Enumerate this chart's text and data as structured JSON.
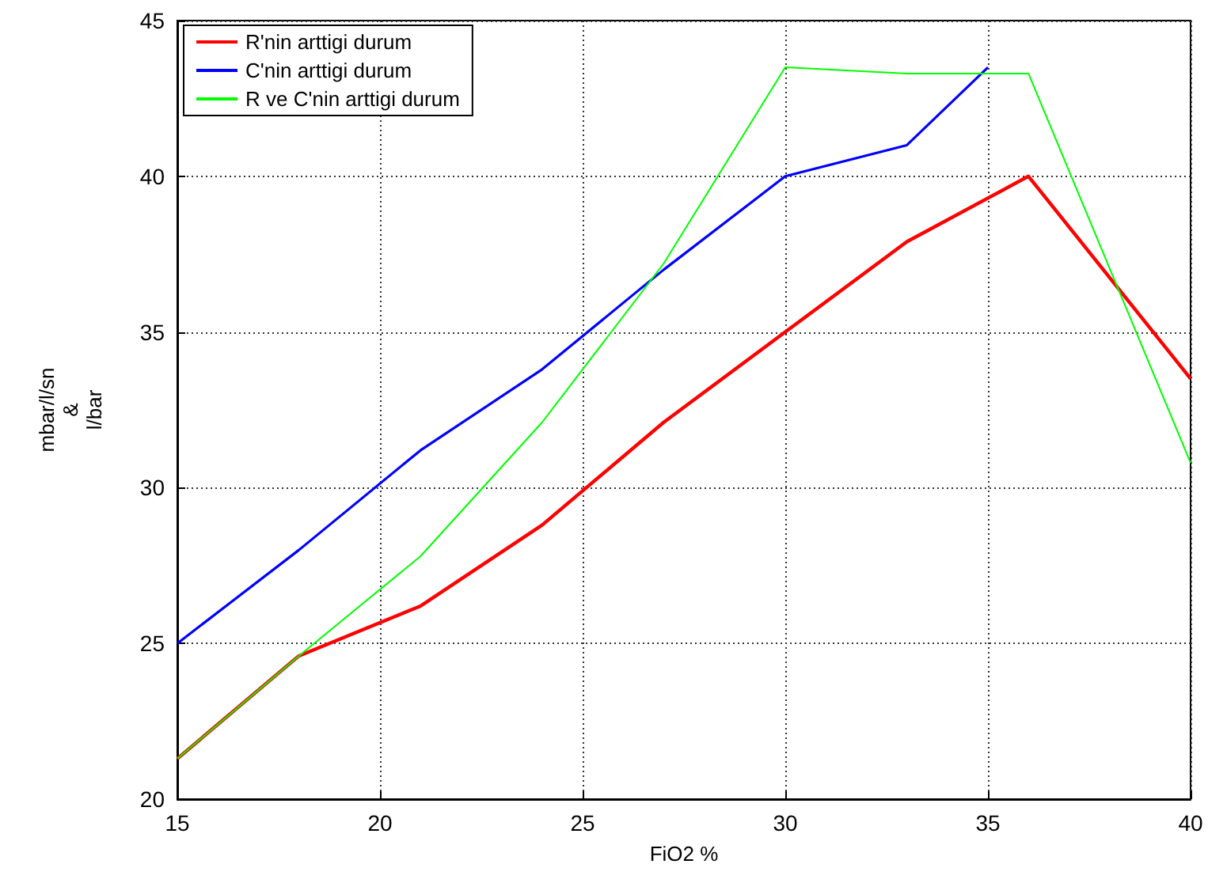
{
  "chart_data": {
    "type": "line",
    "xlabel": "FiO2 %",
    "ylabel": "mbar/l/sn\n&\nl/bar",
    "xlim": [
      15,
      40
    ],
    "xticks": [
      15,
      20,
      25,
      30,
      35,
      40
    ],
    "ylim": [
      20,
      45
    ],
    "yticks": [
      20,
      25,
      30,
      35,
      40,
      45
    ],
    "grid": true,
    "legend": "top left",
    "line_style": "solid",
    "marker": "none",
    "series": [
      {
        "name": "R'nin arttigi durum",
        "color": "#ff0000",
        "x": [
          15,
          18,
          21,
          24,
          27,
          30,
          33,
          36,
          40
        ],
        "values": [
          21.3,
          24.6,
          26.2,
          28.8,
          32.1,
          35,
          37.9,
          40,
          33.5
        ]
      },
      {
        "name": "C'nin arttigi durum",
        "color": "#0000ff",
        "x": [
          15,
          18,
          21,
          24,
          27,
          30,
          33,
          35
        ],
        "values": [
          25,
          28,
          31.2,
          33.8,
          37,
          40,
          41,
          43.5
        ]
      },
      {
        "name": "R ve C'nin arttigi durum",
        "color": "#00ff00",
        "x": [
          15,
          18,
          21,
          24,
          27,
          30,
          33,
          36,
          40
        ],
        "values": [
          21.3,
          24.6,
          27.8,
          32.1,
          37.2,
          43.5,
          43.3,
          43.3,
          30.8
        ]
      }
    ]
  }
}
